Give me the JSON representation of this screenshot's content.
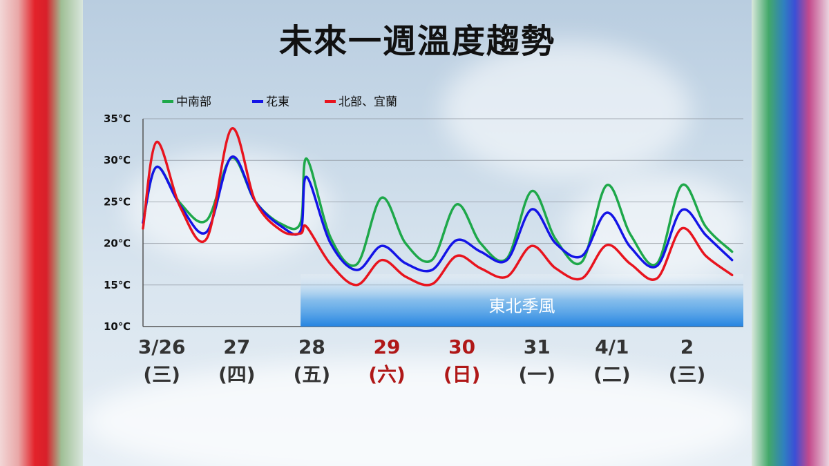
{
  "title": "未來一週溫度趨勢",
  "band_label": "東北季風",
  "colors": {
    "green": "#1ea84a",
    "blue": "#1414e6",
    "red": "#e8141e",
    "band": "#3d9be8",
    "weekend": "#b01818"
  },
  "chart_data": {
    "type": "line",
    "title": "未來一週溫度趨勢",
    "xlabel": "",
    "ylabel": "",
    "ylim": [
      10,
      35
    ],
    "xlim": [
      0,
      8
    ],
    "grid": true,
    "legend_position": "top-left",
    "y_ticks": [
      "35℃",
      "30℃",
      "25℃",
      "20℃",
      "15℃",
      "10℃"
    ],
    "y_tick_values": [
      35,
      30,
      25,
      20,
      15,
      10
    ],
    "date_labels": [
      "3/26",
      "27",
      "28",
      "29",
      "30",
      "31",
      "4/1",
      "2"
    ],
    "weekday_labels": [
      "(三)",
      "(四)",
      "(五)",
      "(六)",
      "(日)",
      "(一)",
      "(二)",
      "(三)"
    ],
    "weekend_flags": [
      false,
      false,
      false,
      true,
      true,
      false,
      false,
      false
    ],
    "annotation": {
      "text": "東北季風",
      "x_start": 2.1,
      "x_end": 8
    },
    "series": [
      {
        "name": "中南部",
        "color": "#1ea84a",
        "x": [
          0,
          0.18,
          0.5,
          0.85,
          1.18,
          1.5,
          1.85,
          2.1,
          2.18,
          2.5,
          2.85,
          3.18,
          3.5,
          3.85,
          4.18,
          4.5,
          4.85,
          5.18,
          5.5,
          5.85,
          6.18,
          6.5,
          6.85,
          7.18,
          7.5,
          7.85
        ],
        "y": [
          22.5,
          29.2,
          24.8,
          22.8,
          30.3,
          25.0,
          22.3,
          22.5,
          30.2,
          20.7,
          17.5,
          25.5,
          20.0,
          18.0,
          24.7,
          20.0,
          18.2,
          26.3,
          20.5,
          17.8,
          27.0,
          21.0,
          17.6,
          27.0,
          22.0,
          19.0
        ]
      },
      {
        "name": "花東",
        "color": "#1414e6",
        "x": [
          0,
          0.18,
          0.5,
          0.85,
          1.18,
          1.5,
          1.85,
          2.1,
          2.18,
          2.5,
          2.85,
          3.18,
          3.5,
          3.85,
          4.18,
          4.5,
          4.85,
          5.18,
          5.5,
          5.85,
          6.18,
          6.5,
          6.85,
          7.18,
          7.5,
          7.85
        ],
        "y": [
          22.5,
          29.2,
          24.5,
          21.4,
          30.4,
          25.0,
          22.0,
          21.5,
          28.0,
          20.0,
          16.8,
          19.7,
          17.6,
          16.8,
          20.4,
          19.0,
          18.0,
          24.1,
          20.0,
          18.5,
          23.7,
          19.5,
          17.3,
          24.0,
          21.0,
          18.0
        ]
      },
      {
        "name": "北部、宜蘭",
        "color": "#e8141e",
        "x": [
          0,
          0.18,
          0.5,
          0.85,
          1.18,
          1.5,
          1.85,
          2.1,
          2.18,
          2.5,
          2.85,
          3.18,
          3.5,
          3.85,
          4.18,
          4.5,
          4.85,
          5.18,
          5.5,
          5.85,
          6.18,
          6.5,
          6.85,
          7.18,
          7.5,
          7.85
        ],
        "y": [
          21.8,
          32.2,
          24.3,
          20.6,
          33.8,
          25.0,
          21.5,
          21.2,
          22.0,
          17.5,
          15.0,
          18.0,
          16.0,
          15.1,
          18.5,
          17.0,
          16.0,
          19.7,
          17.0,
          15.8,
          19.8,
          17.5,
          15.8,
          21.8,
          18.5,
          16.2
        ]
      }
    ]
  }
}
